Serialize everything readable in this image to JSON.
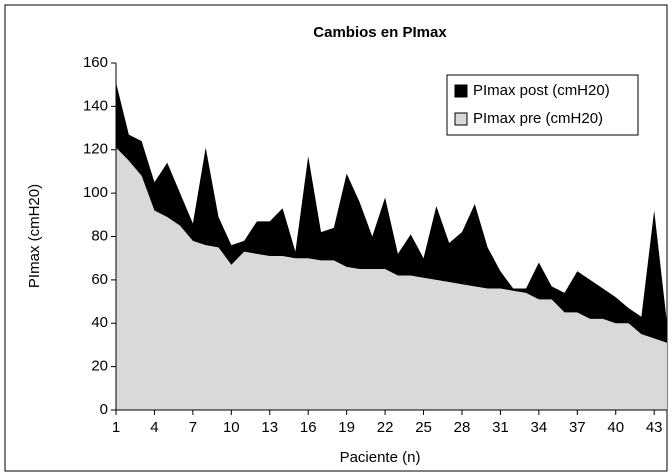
{
  "chart_data": {
    "type": "area",
    "title": "Cambios en PImax",
    "x_label": "Paciente (n)",
    "y_label": "PImax (cmH20)",
    "x": [
      1,
      2,
      3,
      4,
      5,
      6,
      7,
      8,
      9,
      10,
      11,
      12,
      13,
      14,
      15,
      16,
      17,
      18,
      19,
      20,
      21,
      22,
      23,
      24,
      25,
      26,
      27,
      28,
      29,
      30,
      31,
      32,
      33,
      34,
      35,
      36,
      37,
      38,
      39,
      40,
      41,
      42,
      43,
      44
    ],
    "series": [
      {
        "name": "PImax post (cmH20)",
        "color": "#000000",
        "values": [
          151,
          127,
          124,
          105,
          114,
          100,
          86,
          121,
          89,
          76,
          78,
          87,
          87,
          93,
          73,
          117,
          82,
          84,
          109,
          96,
          80,
          98,
          72,
          81,
          70,
          94,
          77,
          82,
          95,
          75,
          64,
          56,
          56,
          68,
          57,
          54,
          64,
          60,
          56,
          52,
          47,
          43,
          92,
          40
        ]
      },
      {
        "name": "PImax pre (cmH20)",
        "color": "#d9d9d9",
        "values": [
          121,
          115,
          108,
          92,
          89,
          85,
          78,
          76,
          75,
          67,
          73,
          72,
          71,
          71,
          70,
          70,
          69,
          69,
          66,
          65,
          65,
          65,
          62,
          62,
          61,
          60,
          59,
          58,
          57,
          56,
          56,
          55,
          54,
          51,
          51,
          45,
          45,
          42,
          42,
          40,
          40,
          35,
          33,
          31
        ]
      }
    ],
    "xlim": [
      1,
      44
    ],
    "xticks": [
      1,
      4,
      7,
      10,
      13,
      16,
      19,
      22,
      25,
      28,
      31,
      34,
      37,
      40,
      43
    ],
    "ylim": [
      0,
      160
    ],
    "yticks": [
      0,
      20,
      40,
      60,
      80,
      100,
      120,
      140,
      160
    ],
    "legend": "upper right"
  }
}
